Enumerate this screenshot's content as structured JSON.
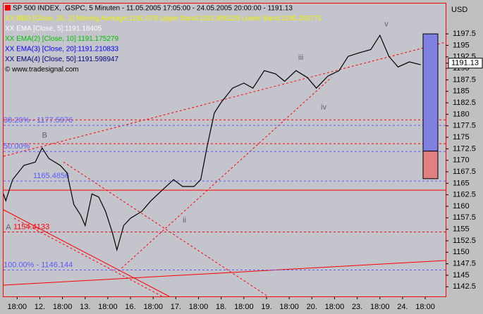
{
  "chart_data": {
    "type": "line",
    "legend": [
      {
        "text": "SP 500 INDEX, .GSPC, 5 Minuten - 11.05.2005 17:05:00 - 24.05.2005 20:00:00 - 1191.13",
        "color": "#000000"
      },
      {
        "text": "XX BBD [Close, 20, 2] Moving Average:1191.078 Upper Band:1191.895229 Lower Band:1190.260771",
        "color": "#f0f000"
      },
      {
        "text": "XX EMA [Close, 5]:1191.18405",
        "color": "#ffffff"
      },
      {
        "text": "XX EMA(2) [Close, 10]:1191.175279",
        "color": "#00c000"
      },
      {
        "text": "XX EMA(3) [Close, 20]:1191.210833",
        "color": "#0000ff"
      },
      {
        "text": "XX EMA(4) [Close, 50]:1191.598947",
        "color": "#000080"
      },
      {
        "text": "© www.tradesignal.com",
        "color": "#000000"
      }
    ],
    "y_axis_label": "USD",
    "last_value": 1191.13,
    "xlim": [
      -0.6,
      18.9
    ],
    "ylim": [
      1140.4,
      1204.1
    ],
    "xticks": [
      {
        "value": 0,
        "label": "18:00"
      },
      {
        "value": 1,
        "label": "12."
      },
      {
        "value": 2,
        "label": "18:00"
      },
      {
        "value": 3,
        "label": "13."
      },
      {
        "value": 4,
        "label": "18:00"
      },
      {
        "value": 5,
        "label": "16."
      },
      {
        "value": 6,
        "label": "18:00"
      },
      {
        "value": 7,
        "label": "17."
      },
      {
        "value": 8,
        "label": "18:00"
      },
      {
        "value": 9,
        "label": "18."
      },
      {
        "value": 10,
        "label": "18:00"
      },
      {
        "value": 11,
        "label": "19."
      },
      {
        "value": 12,
        "label": "18:00"
      },
      {
        "value": 13,
        "label": "20."
      },
      {
        "value": 14,
        "label": "18:00"
      },
      {
        "value": 15,
        "label": "23."
      },
      {
        "value": 16,
        "label": "18:00"
      },
      {
        "value": 17,
        "label": "24."
      },
      {
        "value": 18,
        "label": "18:00"
      }
    ],
    "yticks": [
      1142.5,
      1145,
      1147.5,
      1150,
      1152.5,
      1155,
      1157.5,
      1160,
      1162.5,
      1165,
      1167.5,
      1170,
      1172.5,
      1175,
      1177.5,
      1180,
      1182.5,
      1185,
      1187.5,
      1190,
      1192.5,
      1195,
      1197.5
    ],
    "series": [
      {
        "color": "#000000",
        "x": [
          -0.6,
          -0.5,
          -0.2,
          0.3,
          0.8,
          1.1,
          1.4,
          1.9,
          2.2,
          2.5,
          2.8,
          3.0,
          3.3,
          3.6,
          3.9,
          4.2,
          4.4,
          4.7,
          5.0,
          5.5,
          5.9,
          6.4,
          6.9,
          7.3,
          7.8,
          8.1,
          8.4,
          8.7,
          9.0,
          9.5,
          10.0,
          10.4,
          10.9,
          11.4,
          11.8,
          12.3,
          12.8,
          13.2,
          13.7,
          14.2,
          14.6,
          15.1,
          15.6,
          16.0,
          16.4,
          16.8,
          17.3,
          17.8
        ],
        "values": [
          1162.7,
          1161.2,
          1165.8,
          1168.9,
          1169.6,
          1172.7,
          1170.4,
          1168.9,
          1167.3,
          1160.4,
          1158.1,
          1155.8,
          1162.7,
          1162.0,
          1158.9,
          1154.3,
          1150.5,
          1155.8,
          1157.4,
          1158.9,
          1161.2,
          1163.5,
          1165.8,
          1164.3,
          1164.3,
          1165.8,
          1173.5,
          1180.3,
          1182.6,
          1185.7,
          1186.8,
          1185.7,
          1189.5,
          1188.8,
          1187.2,
          1189.5,
          1188.0,
          1185.7,
          1188.3,
          1189.5,
          1192.6,
          1193.4,
          1194.1,
          1197.2,
          1192.6,
          1190.3,
          1191.4,
          1190.8
        ]
      }
    ],
    "levels": [
      {
        "label": "38.20% - 1177.5976",
        "value": 1177.5976,
        "color": "#5a5aff"
      },
      {
        "label": "50.00%",
        "value": 1171.9,
        "color": "#5a5aff"
      },
      {
        "label": "1165.4856",
        "value": 1165.4856,
        "color": "#5a5aff"
      },
      {
        "label": "1154.4133",
        "value": 1154.4133,
        "color": "#ff0000"
      },
      {
        "label": "100.00% - 1146.144",
        "value": 1146.144,
        "color": "#5a5aff"
      }
    ],
    "lines": [
      {
        "value": 1163.5,
        "color": "#ff0000",
        "style": "solid"
      },
      {
        "value": 1178.8,
        "color": "#ff0000",
        "style": "dashed"
      },
      {
        "value": 1173.6,
        "color": "#ff0000",
        "style": "dashed"
      }
    ],
    "bands": [
      {
        "low": 1172,
        "high": 1197.5,
        "color": "#8080e0"
      },
      {
        "low": 1166,
        "high": 1172,
        "color": "#e08080"
      }
    ],
    "annotations": [
      {
        "text": "A",
        "x": -0.5,
        "y": 1155.4
      },
      {
        "text": "B",
        "x": 1.1,
        "y": 1175.4
      },
      {
        "text": "ii",
        "x": 7.3,
        "y": 1156.9
      },
      {
        "text": "iii",
        "x": 12.4,
        "y": 1192.3
      },
      {
        "text": "iv",
        "x": 13.4,
        "y": 1181.5
      },
      {
        "text": "v",
        "x": 16.2,
        "y": 1199.6
      }
    ]
  }
}
